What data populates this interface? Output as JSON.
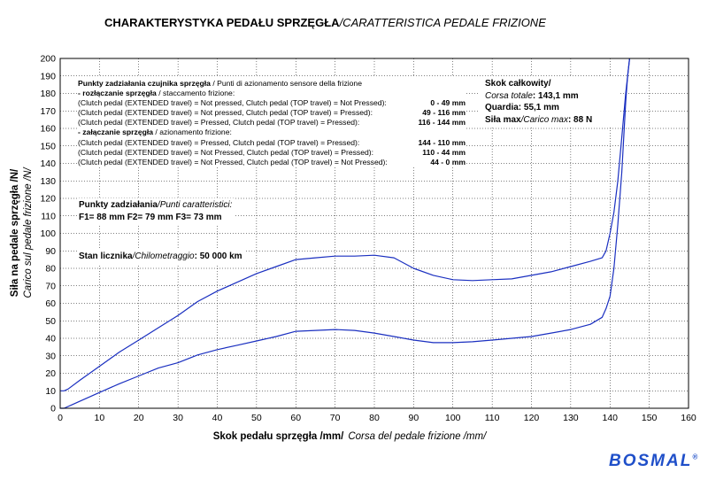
{
  "chart_data": {
    "type": "line",
    "title_bold": "CHARAKTERYSTYKA PEDAŁU SPRZĘGŁA",
    "title_italic": "/CARATTERISTICA PEDALE FRIZIONE",
    "xlabel_bold": "Skok pedału sprzęgła /mm/",
    "xlabel_italic": "Corsa del pedale frizione /mm/",
    "ylabel_bold": "Siła na pedale sprzęgła /N/",
    "ylabel_italic": "Carico sul pedale frizione /N/",
    "xlim": [
      0,
      160
    ],
    "ylim": [
      0,
      200
    ],
    "xticks": [
      0,
      10,
      20,
      30,
      40,
      50,
      60,
      70,
      80,
      90,
      100,
      110,
      120,
      130,
      140,
      150,
      160
    ],
    "yticks": [
      0,
      10,
      20,
      30,
      40,
      50,
      60,
      70,
      80,
      90,
      100,
      110,
      120,
      130,
      140,
      150,
      160,
      170,
      180,
      190,
      200
    ],
    "grid": true,
    "series_color": "#1a2fc0",
    "series": [
      {
        "x": [
          0,
          1,
          2,
          5,
          10,
          15,
          20,
          25,
          30,
          35,
          40,
          45,
          50,
          55,
          60,
          65,
          70,
          75,
          80,
          85,
          90,
          95,
          100,
          105,
          110,
          115,
          120,
          125,
          130,
          135,
          138,
          139,
          140,
          141,
          142,
          143,
          144,
          145
        ],
        "y": [
          10,
          10,
          11,
          16,
          24,
          32,
          39,
          46,
          53,
          61,
          67,
          72,
          77,
          81,
          85,
          86,
          87,
          87,
          87.5,
          86,
          80,
          76,
          73.5,
          73,
          73.5,
          74,
          76,
          78,
          81,
          84,
          86,
          90,
          100,
          112,
          130,
          155,
          180,
          200
        ]
      },
      {
        "x": [
          145,
          144.5,
          144,
          143.5,
          143,
          142,
          141,
          140,
          139,
          138,
          135,
          130,
          125,
          120,
          115,
          110,
          105,
          100,
          95,
          90,
          85,
          80,
          75,
          70,
          65,
          60,
          55,
          50,
          45,
          40,
          35,
          30,
          25,
          20,
          15,
          10,
          5,
          3,
          2,
          1,
          0
        ],
        "y": [
          200,
          190,
          175,
          155,
          135,
          105,
          80,
          64,
          57,
          52,
          48,
          45,
          43,
          41,
          40,
          39,
          38,
          37.5,
          37.5,
          39,
          41,
          43,
          44.5,
          45,
          44.5,
          44,
          41,
          38.5,
          36,
          33.5,
          30.5,
          26,
          23,
          18.5,
          14,
          9,
          4,
          2,
          1,
          0,
          0
        ]
      }
    ]
  },
  "notes": {
    "sensor": {
      "heading_bold": "Punkty zadziałania czujnika sprzęgła",
      "heading_rest": " / Punti di azionamento sensore della frizione",
      "release_bold": " - rozłączanie sprzęgła",
      "release_rest": " / staccamento frizione:",
      "engage_bold": " - załączanie sprzęgła",
      "engage_rest": " / azionamento frizione:",
      "release_rows": [
        {
          "text": "(Clutch pedal (EXTENDED travel) = Not pressed, Clutch pedal (TOP travel) = Not Pressed):",
          "value": "0 - 49 mm"
        },
        {
          "text": "(Clutch pedal (EXTENDED travel) = Not pressed, Clutch pedal (TOP travel) = Pressed):",
          "value": "49 - 116 mm"
        },
        {
          "text": "(Clutch pedal (EXTENDED travel) = Pressed, Clutch pedal (TOP travel) = Pressed):",
          "value": "116 - 144 mm"
        }
      ],
      "engage_rows": [
        {
          "text": "(Clutch pedal (EXTENDED travel) = Pressed, Clutch pedal (TOP travel) = Pressed):",
          "value": "144 - 110 mm"
        },
        {
          "text": "(Clutch pedal (EXTENDED travel) = Not Pressed, Clutch pedal (TOP travel) = Pressed):",
          "value": "110 - 44 mm"
        },
        {
          "text": "(Clutch pedal (EXTENDED travel) = Not Pressed, Clutch pedal (TOP travel) = Not Pressed):",
          "value": "44 - 0 mm"
        }
      ]
    },
    "points": {
      "heading_bold": "Punkty zadziałania",
      "heading_italic": "/Punti caratteristici:",
      "values": "F1= 88 mm  F2= 79 mm  F3= 73 mm"
    },
    "odometer": {
      "label_bold": "Stan licznika",
      "label_italic": "/Chilometraggio",
      "value": ": 50 000 km"
    },
    "stroke": {
      "l1_bold": "Skok całkowity/",
      "l2_italic": "Corsa totale",
      "l2_value": ": 143,1 mm",
      "l3_bold": "Quardia",
      "l3_value": ": 55,1 mm",
      "l4_bold": "Siła max",
      "l4_italic": "/Carico max",
      "l4_value": ": 88 N"
    }
  },
  "logo": {
    "text": "BOSMAL",
    "mark": "®",
    "color": "#1f4fc9"
  }
}
